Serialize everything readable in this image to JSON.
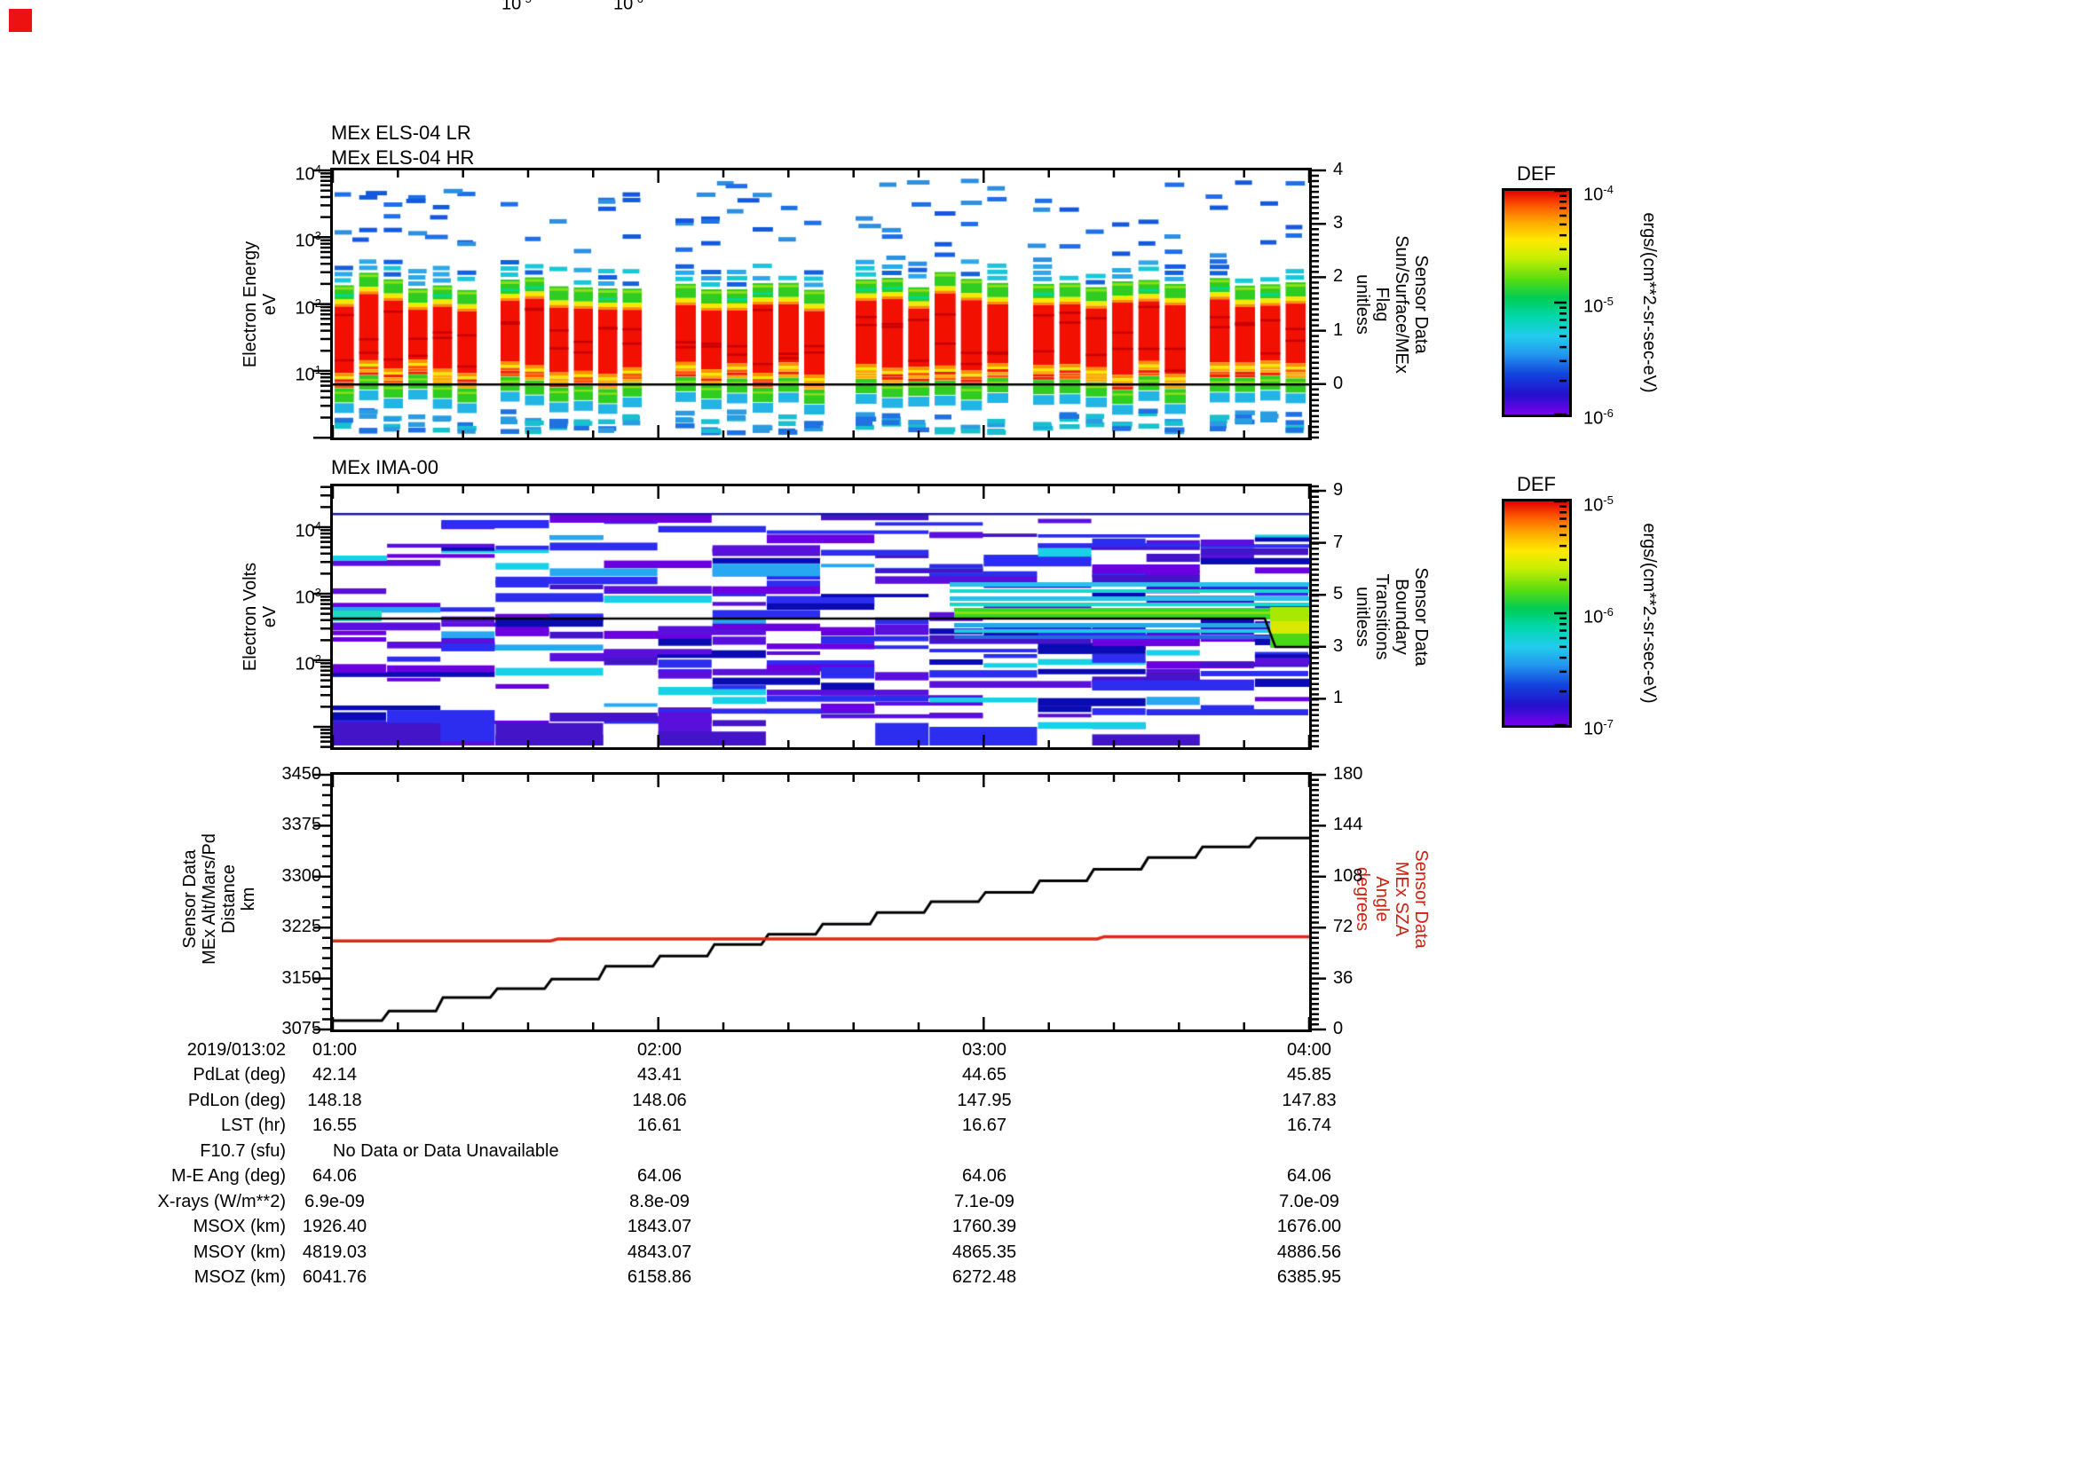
{
  "corner_marker": {
    "color": "#ee1111"
  },
  "chart_data": [
    {
      "type": "heatmap",
      "titles": [
        "MEx ELS-04 LR",
        "MEx ELS-04 HR"
      ],
      "ylabel": [
        "Electron Energy",
        "eV"
      ],
      "yaxis": {
        "scale": "log",
        "unit": "eV",
        "range": [
          1,
          10000
        ],
        "ticks": [
          "10^4",
          "10^3",
          "10^2",
          "10^1"
        ]
      },
      "right_axis": {
        "label": [
          "Sensor Data",
          "Sun/Surface/MEx",
          "Flag",
          "unitless"
        ],
        "range": [
          -1,
          4
        ],
        "ticks": [
          "4",
          "3",
          "2",
          "1",
          "0"
        ]
      },
      "flag_line_value": 0,
      "colorbar": {
        "title": "DEF",
        "unit": "ergs/(cm**2-sr-sec-eV)",
        "ticks": [
          "10^-4",
          "10^-5",
          "10^-6"
        ]
      },
      "time_range": [
        "01:00",
        "04:00"
      ],
      "description": "Bursty electron spectrogram: six burst groups of intense red flux between ~10 and ~80 eV separated by white data gaps, green/cyan fringes, sparse blue points up to 10 keV; black flag trace constant at 0"
    },
    {
      "type": "heatmap",
      "titles": [
        "MEx IMA-00"
      ],
      "ylabel": [
        "Electron Volts",
        "eV"
      ],
      "yaxis": {
        "scale": "log",
        "unit": "eV",
        "range": [
          5,
          40000
        ],
        "ticks": [
          "10^4",
          "10^3",
          "10^2"
        ]
      },
      "right_axis": {
        "label": [
          "Sensor Data",
          "Boundary",
          "Transitions",
          "unitless"
        ],
        "ticks": [
          "9",
          "7",
          "5",
          "3",
          "1"
        ]
      },
      "boundary_line": {
        "value_start": 4,
        "value_end": 3,
        "step_near": "03:52"
      },
      "colorbar": {
        "title": "DEF",
        "unit": "ergs/(cm**2-sr-sec-eV)",
        "ticks": [
          "10^-5",
          "10^-6",
          "10^-7"
        ]
      },
      "time_range": [
        "01:00",
        "04:00"
      ],
      "description": "Patchy violet/blue ion flux mosaic in column blocks with white gaps; cyan-green enhancement band near 300-500 eV growing after ~02:50, brightening to green/yellow at right edge; black boundary trace at 4 stepping to 3 near 03:52"
    },
    {
      "type": "line",
      "ylabel": [
        "Sensor Data",
        "MEx Alt/Mars/Pd",
        "Distance",
        "km"
      ],
      "yaxis": {
        "range": [
          3075,
          3450
        ],
        "ticks": [
          "3450",
          "3375",
          "3300",
          "3225",
          "3150",
          "3075"
        ]
      },
      "right_axis": {
        "label": [
          "Sensor Data",
          "MEx SZA",
          "Angle",
          "degrees"
        ],
        "range": [
          0,
          180
        ],
        "ticks": [
          "180",
          "144",
          "108",
          "72",
          "36",
          "0"
        ],
        "color": "#cc2211"
      },
      "x_start_label": "2019/013:02",
      "x_ticks": [
        "01:00",
        "02:00",
        "03:00",
        "04:00"
      ],
      "series": [
        {
          "name": "MEx Alt/Mars/Pd Distance (km)",
          "color": "#000000",
          "style": "step",
          "t_hours": [
            1.0,
            1.167,
            1.333,
            1.5,
            1.667,
            1.833,
            2.0,
            2.167,
            2.333,
            2.5,
            2.667,
            2.833,
            3.0,
            3.167,
            3.333,
            3.5,
            3.667,
            3.833
          ],
          "values": [
            3088,
            3102,
            3122,
            3135,
            3149,
            3168,
            3183,
            3200,
            3215,
            3230,
            3247,
            3263,
            3277,
            3294,
            3311,
            3328,
            3344,
            3357
          ]
        },
        {
          "name": "MEx SZA Angle (degrees)",
          "color": "#dd2a18",
          "style": "step",
          "t_hours": [
            1.0,
            1.68,
            3.36
          ],
          "values": [
            62.6,
            64.0,
            65.6
          ]
        }
      ]
    }
  ],
  "table": {
    "time_row": {
      "label": "2019/013:02",
      "values": [
        "01:00",
        "02:00",
        "03:00",
        "04:00"
      ]
    },
    "rows": [
      {
        "label": "PdLat (deg)",
        "values": [
          "42.14",
          "43.41",
          "44.65",
          "45.85"
        ]
      },
      {
        "label": "PdLon (deg)",
        "values": [
          "148.18",
          "148.06",
          "147.95",
          "147.83"
        ]
      },
      {
        "label": "LST (hr)",
        "values": [
          "16.55",
          "16.61",
          "16.67",
          "16.74"
        ]
      },
      {
        "label": "F10.7 (sfu)",
        "values": [],
        "nodata": "No Data or Data Unavailable"
      },
      {
        "label": "M-E Ang (deg)",
        "values": [
          "64.06",
          "64.06",
          "64.06",
          "64.06"
        ]
      },
      {
        "label": "X-rays (W/m**2)",
        "values": [
          "6.9e-09",
          "8.8e-09",
          "7.1e-09",
          "7.0e-09"
        ]
      },
      {
        "label": "MSOX (km)",
        "values": [
          "1926.40",
          "1843.07",
          "1760.39",
          "1676.00"
        ]
      },
      {
        "label": "MSOY (km)",
        "values": [
          "4819.03",
          "4843.07",
          "4865.35",
          "4886.56"
        ]
      },
      {
        "label": "MSOZ (km)",
        "values": [
          "6041.76",
          "6158.86",
          "6272.48",
          "6385.95"
        ]
      }
    ]
  }
}
